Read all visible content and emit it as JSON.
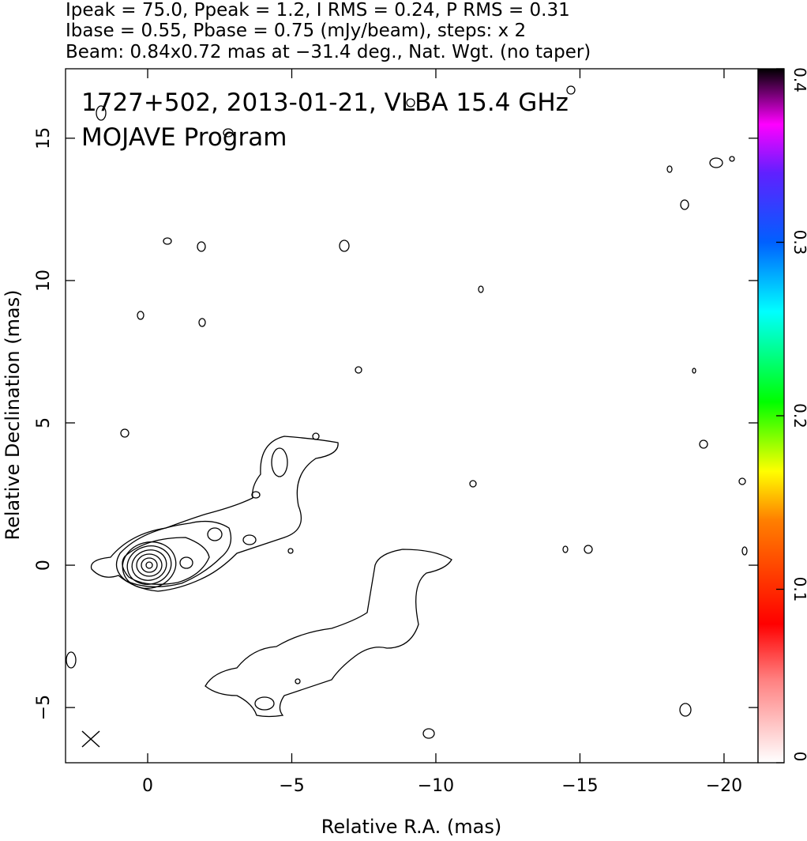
{
  "chart_data": {
    "type": "contour",
    "header_lines": [
      "Ipeak = 75.0, Ppeak = 1.2, I RMS = 0.24, P RMS = 0.31",
      "Ibase = 0.55, Pbase = 0.75 (mJy/beam), steps: x 2",
      "Beam: 0.84x0.72 mas at −31.4 deg., Nat. Wgt. (no taper)"
    ],
    "title_lines": [
      "1727+502, 2013-01-21, VLBA 15.4 GHz",
      "MOJAVE Program"
    ],
    "xlabel": "Relative R.A. (mas)",
    "ylabel": "Relative Declination (mas)",
    "xlim": [
      2.85,
      -21.18
    ],
    "ylim": [
      -6.94,
      17.44
    ],
    "xticks": [
      0,
      {
        "value": -5,
        "label": "−5"
      },
      {
        "value": -10,
        "label": "−10"
      },
      {
        "value": -15,
        "label": "−15"
      },
      {
        "value": -20,
        "label": "−20"
      }
    ],
    "yticks": [
      {
        "value": -5,
        "label": "−5"
      },
      0,
      5,
      10,
      15
    ],
    "colorbar": {
      "lim": [
        0,
        0.4
      ],
      "ticks": [
        0,
        0.1,
        0.2,
        0.3,
        0.4
      ]
    }
  }
}
